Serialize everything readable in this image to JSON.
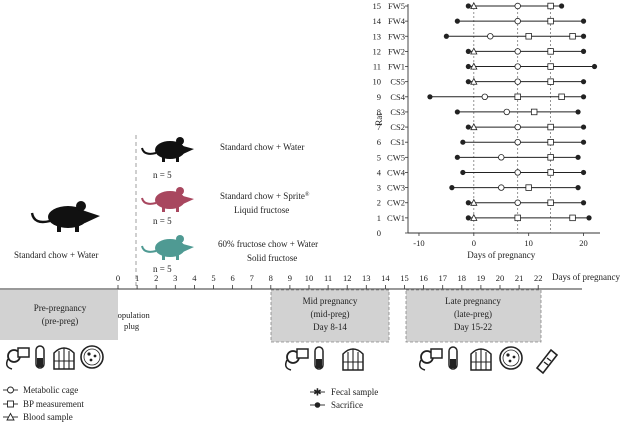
{
  "chart_data": {
    "type": "timeline-dot-plot",
    "xlabel": "Days of pregnancy",
    "ylabel": "Rat",
    "xlim": [
      -12,
      23
    ],
    "ylim": [
      0,
      15
    ],
    "x_ticks": [
      -10,
      0,
      10,
      20
    ],
    "y_ticks": [
      0,
      1,
      2,
      3,
      4,
      5,
      6,
      7,
      8,
      9,
      10,
      11,
      12,
      13,
      14,
      15
    ],
    "reference_lines_x": [
      0,
      8,
      14
    ],
    "rats": [
      {
        "y": 1,
        "label": "CW1",
        "start": -1,
        "end": 21,
        "marks": [
          [
            -1,
            "sac"
          ],
          [
            0,
            "blood"
          ],
          [
            8,
            "bp"
          ],
          [
            18,
            "bp"
          ],
          [
            21,
            "sac"
          ]
        ]
      },
      {
        "y": 2,
        "label": "CW2",
        "start": -1,
        "end": 20,
        "marks": [
          [
            -1,
            "sac"
          ],
          [
            0,
            "blood"
          ],
          [
            8,
            "meta"
          ],
          [
            14,
            "bp"
          ],
          [
            20,
            "sac"
          ]
        ]
      },
      {
        "y": 3,
        "label": "CW3",
        "start": -4,
        "end": 19,
        "marks": [
          [
            -4,
            "sac"
          ],
          [
            5,
            "meta"
          ],
          [
            10,
            "bp"
          ],
          [
            19,
            "sac"
          ]
        ]
      },
      {
        "y": 4,
        "label": "CW4",
        "start": -2,
        "end": 20,
        "marks": [
          [
            -2,
            "sac"
          ],
          [
            8,
            "meta"
          ],
          [
            14,
            "bp"
          ],
          [
            20,
            "sac"
          ]
        ]
      },
      {
        "y": 5,
        "label": "CW5",
        "start": -3,
        "end": 19,
        "marks": [
          [
            -3,
            "sac"
          ],
          [
            5,
            "meta"
          ],
          [
            14,
            "bp"
          ],
          [
            19,
            "sac"
          ]
        ]
      },
      {
        "y": 6,
        "label": "CS1",
        "start": -2,
        "end": 20,
        "marks": [
          [
            -2,
            "sac"
          ],
          [
            8,
            "meta"
          ],
          [
            14,
            "bp"
          ],
          [
            20,
            "sac"
          ]
        ]
      },
      {
        "y": 7,
        "label": "CS2",
        "start": -1,
        "end": 20,
        "marks": [
          [
            -1,
            "sac"
          ],
          [
            0,
            "blood"
          ],
          [
            8,
            "meta"
          ],
          [
            14,
            "bp"
          ],
          [
            20,
            "sac"
          ]
        ]
      },
      {
        "y": 8,
        "label": "CS3",
        "start": -3,
        "end": 19,
        "marks": [
          [
            -3,
            "sac"
          ],
          [
            6,
            "meta"
          ],
          [
            11,
            "bp"
          ],
          [
            19,
            "sac"
          ]
        ]
      },
      {
        "y": 9,
        "label": "CS4",
        "start": -8,
        "end": 20,
        "marks": [
          [
            -8,
            "sac"
          ],
          [
            2,
            "meta"
          ],
          [
            8,
            "bp"
          ],
          [
            16,
            "bp"
          ],
          [
            20,
            "sac"
          ]
        ]
      },
      {
        "y": 10,
        "label": "CS5",
        "start": -1,
        "end": 20,
        "marks": [
          [
            -1,
            "sac"
          ],
          [
            0,
            "blood"
          ],
          [
            8,
            "meta"
          ],
          [
            14,
            "bp"
          ],
          [
            20,
            "sac"
          ]
        ]
      },
      {
        "y": 11,
        "label": "FW1",
        "start": -1,
        "end": 22,
        "marks": [
          [
            -1,
            "sac"
          ],
          [
            0,
            "blood"
          ],
          [
            8,
            "meta"
          ],
          [
            14,
            "bp"
          ],
          [
            22,
            "sac"
          ]
        ]
      },
      {
        "y": 12,
        "label": "FW2",
        "start": -1,
        "end": 20,
        "marks": [
          [
            -1,
            "sac"
          ],
          [
            0,
            "blood"
          ],
          [
            8,
            "meta"
          ],
          [
            14,
            "bp"
          ],
          [
            20,
            "sac"
          ]
        ]
      },
      {
        "y": 13,
        "label": "FW3",
        "start": -5,
        "end": 20,
        "marks": [
          [
            -5,
            "sac"
          ],
          [
            3,
            "meta"
          ],
          [
            10,
            "bp"
          ],
          [
            18,
            "bp"
          ],
          [
            20,
            "sac"
          ]
        ]
      },
      {
        "y": 14,
        "label": "FW4",
        "start": -3,
        "end": 20,
        "marks": [
          [
            -3,
            "sac"
          ],
          [
            8,
            "meta"
          ],
          [
            14,
            "bp"
          ],
          [
            20,
            "sac"
          ]
        ]
      },
      {
        "y": 15,
        "label": "FW5",
        "start": -1,
        "end": 16,
        "marks": [
          [
            -1,
            "sac"
          ],
          [
            0,
            "blood"
          ],
          [
            8,
            "meta"
          ],
          [
            14,
            "bp"
          ],
          [
            16,
            "sac"
          ]
        ]
      }
    ]
  },
  "groups": {
    "n": "n = 5",
    "control": "Standard chow + Water",
    "sprite_line1": "Standard chow + Sprite",
    "sprite_mark": "®",
    "sprite_line2": "Liquid fructose",
    "solid_line1": "60% fructose chow + Water",
    "solid_line2": "Solid fructose",
    "pre_diet": "Standard chow + Water",
    "colors": {
      "control": "#111111",
      "sprite": "#a8475f",
      "solid": "#4f9a93"
    }
  },
  "timeline": {
    "ticks": [
      0,
      1,
      2,
      3,
      4,
      5,
      6,
      7,
      8,
      9,
      10,
      11,
      12,
      13,
      14,
      15,
      16,
      17,
      18,
      19,
      20,
      21,
      22
    ],
    "axis_label": "Days of pregnancy",
    "copulation_line1": "Copulation",
    "copulation_line2": "plug",
    "phases": [
      {
        "name": "Pre-pregnancy",
        "abbr": "(pre-preg)",
        "days": ""
      },
      {
        "name": "Mid pregnancy",
        "abbr": "(mid-preg)",
        "days": "Day 8-14"
      },
      {
        "name": "Late pregnancy",
        "abbr": "(late-preg)",
        "days": "Day 15-22"
      }
    ]
  },
  "legend": {
    "metabolic": "Metabolic cage",
    "bp": "BP measurement",
    "blood": "Blood sample",
    "fecal": "Fecal sample",
    "sacrifice": "Sacrifice"
  },
  "icons": [
    "bp-cuff-icon",
    "blood-tube-icon",
    "metabolic-cage-icon",
    "petri-dish-icon",
    "pregnancy-test-icon"
  ]
}
